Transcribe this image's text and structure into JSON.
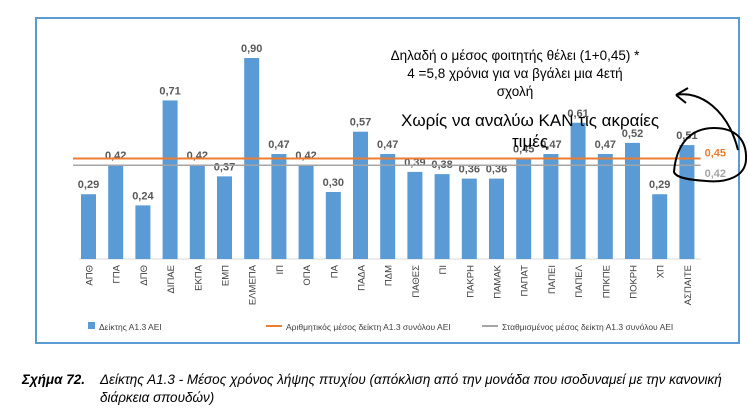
{
  "chart_data": {
    "type": "bar",
    "categories": [
      "ΑΠΘ",
      "ΓΠΑ",
      "ΔΠΘ",
      "ΔΙΠΑΕ",
      "ΕΚΠΑ",
      "ΕΜΠ",
      "ΕΛΜΕΠΑ",
      "ΙΠ",
      "ΟΠΑ",
      "ΠΑ",
      "ΠΑΔΑ",
      "ΠΔΜ",
      "ΠΑΘΕΣ",
      "ΠΙ",
      "ΠΑΚΡΗ",
      "ΠΑΜΑΚ",
      "ΠΑΠΑΤ",
      "ΠΑΠΕΙ",
      "ΠΑΠΕΛ",
      "ΠΠΚΠΕ",
      "ΠΟΚΡΗ",
      "ΧΠ",
      "ΑΣΠΑΙΤΕ"
    ],
    "series": [
      {
        "name": "Δείκτης Α1.3 ΑΕΙ",
        "values": [
          0.29,
          0.42,
          0.24,
          0.71,
          0.42,
          0.37,
          0.9,
          0.47,
          0.42,
          0.3,
          0.57,
          0.47,
          0.39,
          0.38,
          0.36,
          0.36,
          0.45,
          0.47,
          0.61,
          0.47,
          0.52,
          0.29,
          0.51
        ]
      }
    ],
    "value_labels": [
      "0,29",
      "0,42",
      "0,24",
      "0,71",
      "0,42",
      "0,37",
      "0,90",
      "0,47",
      "0,42",
      "0,30",
      "0,57",
      "0,47",
      "0,39",
      "0,38",
      "0,36",
      "0,36",
      "0,45",
      "0,47",
      "0,61",
      "0,47",
      "0,52",
      "0,29",
      "0,51"
    ],
    "reference_lines": [
      {
        "name": "Αριθμητικός μέσος δείκτη Α1.3 συνόλου ΑΕΙ",
        "value": 0.45,
        "label": "0,45",
        "color": "#ed7d31"
      },
      {
        "name": "Σταθμισμένος μέσος δείκτη Α1.3 συνόλου ΑΕΙ",
        "value": 0.42,
        "label": "0,42",
        "color": "#a5a5a5"
      }
    ],
    "ylim": [
      0,
      1
    ],
    "bar_color": "#5b9bd5",
    "legend_position": "bottom",
    "grid": false
  },
  "annotations": {
    "note_lines": [
      "Δηλαδή ο μέσος φοιτητής θέλει (1+0,45) *",
      "4 =5,8 χρόνια για να βγάλει μια 4ετή",
      "σχολή"
    ],
    "note2_lines": [
      "Χωρίς να αναλύω ΚΑΝ τις ακραίες",
      "τιμές"
    ]
  },
  "caption": {
    "label": "Σχήμα 72.",
    "text": "Δείκτης Α1.3 - Μέσος χρόνος λήψης πτυχίου (απόκλιση από την μονάδα που ισοδυναμεί με την κανονική διάρκεια σπουδών)"
  }
}
